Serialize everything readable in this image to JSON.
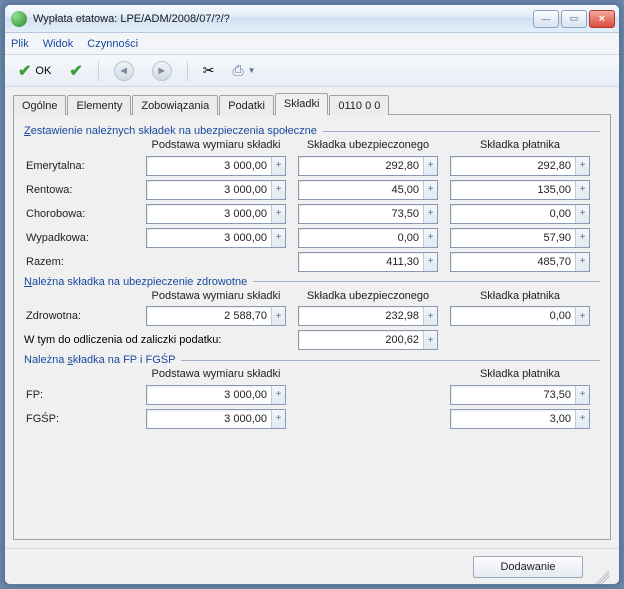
{
  "window": {
    "title": "Wypłata etatowa: LPE/ADM/2008/07/?/?"
  },
  "menu": {
    "file": "Plik",
    "view": "Widok",
    "actions": "Czynności"
  },
  "toolbar": {
    "ok_label": "OK"
  },
  "tabs": {
    "general": "Ogólne",
    "elements": "Elementy",
    "liabilities": "Zobowiązania",
    "taxes": "Podatki",
    "contributions": "Składki",
    "code": "0110 0 0"
  },
  "groups": {
    "social": {
      "title": "Zestawienie należnych składek na ubezpieczenia społeczne",
      "headers": {
        "basis": "Podstawa wymiaru składki",
        "insured": "Składka ubezpieczonego",
        "payer": "Składka płatnika"
      },
      "rows": {
        "emerytalna": {
          "label": "Emerytalna:",
          "basis": "3 000,00",
          "insured": "292,80",
          "payer": "292,80"
        },
        "rentowa": {
          "label": "Rentowa:",
          "basis": "3 000,00",
          "insured": "45,00",
          "payer": "135,00"
        },
        "chorobowa": {
          "label": "Chorobowa:",
          "basis": "3 000,00",
          "insured": "73,50",
          "payer": "0,00"
        },
        "wypadkowa": {
          "label": "Wypadkowa:",
          "basis": "3 000,00",
          "insured": "0,00",
          "payer": "57,90"
        },
        "razem": {
          "label": "Razem:",
          "insured": "411,30",
          "payer": "485,70"
        }
      }
    },
    "health": {
      "title": "Należna składka na ubezpieczenie zdrowotne",
      "headers": {
        "basis": "Podstawa wymiaru składki",
        "insured": "Składka ubezpieczonego",
        "payer": "Składka płatnika"
      },
      "rows": {
        "zdrowotna": {
          "label": "Zdrowotna:",
          "basis": "2 588,70",
          "insured": "232,98",
          "payer": "0,00"
        },
        "deduction": {
          "label": "W tym do odliczenia od zaliczki podatku:",
          "value": "200,62"
        }
      }
    },
    "fp": {
      "title": "Należna składka na FP i FGŚP",
      "headers": {
        "basis": "Podstawa wymiaru składki",
        "payer": "Składka płatnika"
      },
      "rows": {
        "fp": {
          "label": "FP:",
          "basis": "3 000,00",
          "payer": "73,50"
        },
        "fgsp": {
          "label": "FGŚP:",
          "basis": "3 000,00",
          "payer": "3,00"
        }
      }
    }
  },
  "footer": {
    "mode": "Dodawanie"
  },
  "colors": {
    "link": "#1a4aa0",
    "border": "#a0a0a0",
    "field_border": "#8a9ab0",
    "bg": "#f0f0f0"
  }
}
